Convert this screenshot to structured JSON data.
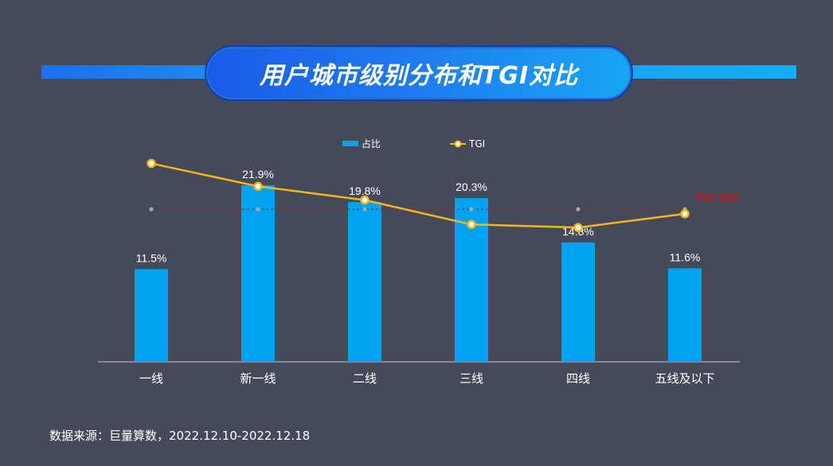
{
  "title": "用户城市级别分布和TGI对比",
  "source": "数据来源：巨量算数，2022.12.10-2022.12.18",
  "colors": {
    "bar": "#00a3f0",
    "line": "#f5b716",
    "reference": "#c4151c",
    "background": "#464959"
  },
  "chart_data": {
    "type": "bar",
    "categories": [
      "一线",
      "新一线",
      "二线",
      "三线",
      "四线",
      "五线及以下"
    ],
    "series": [
      {
        "name": "占比",
        "type": "bar",
        "axis": "left",
        "values": [
          11.5,
          21.9,
          19.8,
          20.3,
          14.8,
          11.6
        ],
        "labels": [
          "11.5%",
          "21.9%",
          "19.8%",
          "20.3%",
          "14.8%",
          "11.6%"
        ]
      },
      {
        "name": "TGI",
        "type": "line",
        "axis": "right",
        "values": [
          130,
          115,
          106,
          90,
          88,
          97
        ]
      }
    ],
    "reference_line": {
      "label": "TGI 100",
      "value": 100,
      "axis": "right"
    },
    "ylim_left": [
      0,
      35
    ],
    "ylim_right": [
      0,
      185
    ],
    "legend": "top-center",
    "grid": false
  }
}
